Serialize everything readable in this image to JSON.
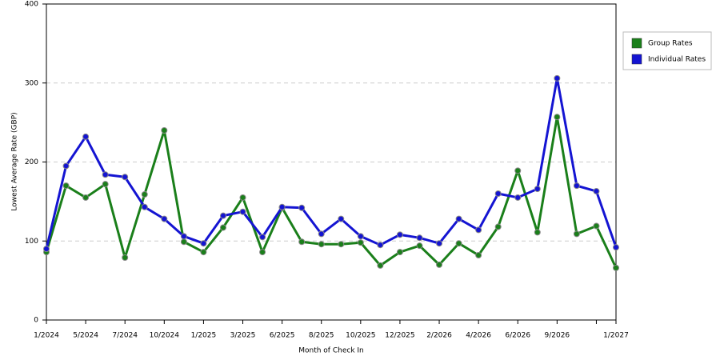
{
  "chart_data": {
    "type": "line",
    "x_label": "Month of Check In",
    "y_label": "Lowest Average Rate (GBP)",
    "categories": [
      "1/2024",
      null,
      "5/2024",
      null,
      "7/2024",
      null,
      "10/2024",
      null,
      "1/2025",
      null,
      "3/2025",
      null,
      "6/2025",
      null,
      "8/2025",
      null,
      "10/2025",
      null,
      "12/2025",
      null,
      "2/2026",
      null,
      "4/2026",
      null,
      "6/2026",
      null,
      "9/2026",
      null,
      null,
      "1/2027"
    ],
    "series": [
      {
        "name": "Group Rates",
        "color": "#1a7f1a",
        "values": [
          86,
          170,
          155,
          172,
          79,
          159,
          240,
          99,
          86,
          117,
          155,
          86,
          142,
          99,
          96,
          96,
          98,
          69,
          86,
          94,
          70,
          97,
          82,
          118,
          189,
          111,
          257,
          109,
          119,
          66
        ]
      },
      {
        "name": "Individual Rates",
        "color": "#1414d2",
        "values": [
          90,
          195,
          232,
          184,
          181,
          143,
          128,
          106,
          97,
          132,
          137,
          105,
          143,
          142,
          109,
          128,
          106,
          95,
          108,
          104,
          97,
          128,
          114,
          160,
          155,
          166,
          306,
          170,
          163,
          92
        ]
      }
    ],
    "ylim": [
      0,
      400
    ],
    "yticks": [
      0,
      100,
      200,
      300,
      400
    ],
    "grid": true,
    "legend": "right"
  }
}
